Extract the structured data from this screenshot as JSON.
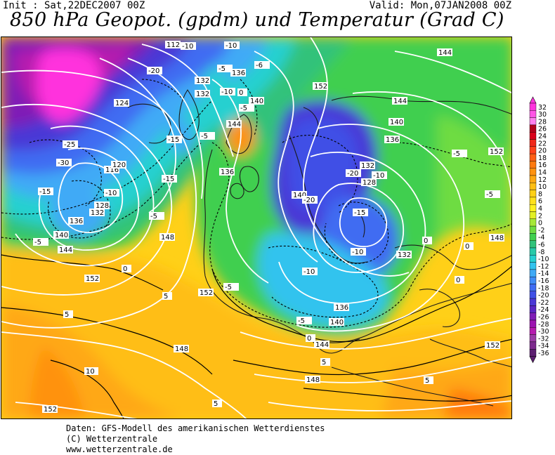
{
  "header": {
    "init": "Init : Sat,22DEC2007 00Z",
    "valid": "Valid: Mon,07JAN2008 00Z",
    "title": "850 hPa Geopot. (gpdm) und Temperatur (Grad C)"
  },
  "colorbar": {
    "stops": [
      {
        "label": "32",
        "color": "#ff33dd"
      },
      {
        "label": "30",
        "color": "#ff55e6"
      },
      {
        "label": "28",
        "color": "#ff80ee"
      },
      {
        "label": "26",
        "color": "#b3001a"
      },
      {
        "label": "24",
        "color": "#d9001a"
      },
      {
        "label": "22",
        "color": "#f0281a"
      },
      {
        "label": "20",
        "color": "#ff4019"
      },
      {
        "label": "18",
        "color": "#ff5e14"
      },
      {
        "label": "16",
        "color": "#ff7a10"
      },
      {
        "label": "14",
        "color": "#ff9210"
      },
      {
        "label": "12",
        "color": "#ffa812"
      },
      {
        "label": "10",
        "color": "#ffbe14"
      },
      {
        "label": "8",
        "color": "#ffd018"
      },
      {
        "label": "6",
        "color": "#ffe01c"
      },
      {
        "label": "4",
        "color": "#fff01f"
      },
      {
        "label": "2",
        "color": "#e3f026"
      },
      {
        "label": "0",
        "color": "#a6e838"
      },
      {
        "label": "-2",
        "color": "#6edc42"
      },
      {
        "label": "-4",
        "color": "#3fcf4f"
      },
      {
        "label": "-6",
        "color": "#30c27a"
      },
      {
        "label": "-8",
        "color": "#27c9a8"
      },
      {
        "label": "-10",
        "color": "#26d0d0"
      },
      {
        "label": "-12",
        "color": "#33c3ee"
      },
      {
        "label": "-14",
        "color": "#40aaf6"
      },
      {
        "label": "-16",
        "color": "#408cf6"
      },
      {
        "label": "-18",
        "color": "#3f6cf2"
      },
      {
        "label": "-20",
        "color": "#3f50e6"
      },
      {
        "label": "-22",
        "color": "#4a38d6"
      },
      {
        "label": "-24",
        "color": "#5a26c4"
      },
      {
        "label": "-26",
        "color": "#7f1eb6"
      },
      {
        "label": "-28",
        "color": "#9c14b0"
      },
      {
        "label": "-30",
        "color": "#b51aae"
      },
      {
        "label": "-32",
        "color": "#9a3aa5"
      },
      {
        "label": "-34",
        "color": "#7d2a8d"
      },
      {
        "label": "-36",
        "color": "#5c1f70"
      }
    ]
  },
  "map_labels": {
    "geopotential": [
      "112",
      "124",
      "116",
      "120",
      "128",
      "132",
      "136",
      "140",
      "144",
      "148",
      "152",
      "132",
      "136",
      "132",
      "140",
      "144",
      "152",
      "136",
      "132",
      "128",
      "140",
      "144",
      "136",
      "140",
      "152",
      "132",
      "144",
      "148",
      "152",
      "140",
      "136",
      "144",
      "148",
      "152",
      "152",
      "148"
    ],
    "temperature": [
      "-20",
      "-25",
      "-30",
      "-15",
      "-10",
      "-15",
      "-15",
      "-10",
      "-5",
      "-5",
      "0",
      "-10",
      "-5",
      "-6",
      "-10",
      "-5",
      "0",
      "-5",
      "-20",
      "-10",
      "-20",
      "-15",
      "-10",
      "-10",
      "-5",
      "0",
      "-5",
      "0",
      "0",
      "-5",
      "5",
      "5",
      "10",
      "5",
      "5",
      "0",
      "5",
      "-5"
    ]
  },
  "footer": {
    "line1": "Daten: GFS-Modell des amerikanischen Wetterdienstes",
    "line2": "(C) Wetterzentrale",
    "line3": "www.wetterzentrale.de"
  }
}
